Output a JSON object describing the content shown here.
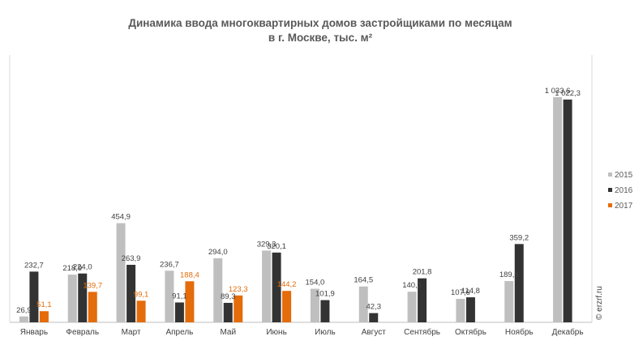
{
  "chart_data": {
    "type": "bar",
    "title_line1": "Динамика ввода многоквартирных домов застройщиками по месяцам",
    "title_line2": "в г. Москве, тыс. м²",
    "categories": [
      "Январь",
      "Февраль",
      "Март",
      "Апрель",
      "Май",
      "Июнь",
      "Июль",
      "Август",
      "Сентябрь",
      "Октябрь",
      "Ноябрь",
      "Декабрь"
    ],
    "ylim": [
      0,
      1100
    ],
    "grid": false,
    "legend_position": "right",
    "series": [
      {
        "name": "2015",
        "color": "#bfbfbf",
        "values": [
          26.9,
          218.9,
          454.9,
          236.7,
          294.0,
          329.3,
          154.0,
          164.5,
          140.3,
          107.6,
          189.3,
          1033.6
        ],
        "labels": [
          "26,9",
          "218,9",
          "454,9",
          "236,7",
          "294,0",
          "329,3",
          "154,0",
          "164,5",
          "140,3",
          "107,6",
          "189,3",
          "1 033,6"
        ]
      },
      {
        "name": "2016",
        "color": "#333333",
        "values": [
          232.7,
          224.0,
          263.9,
          91.1,
          89.3,
          320.1,
          101.9,
          42.3,
          201.8,
          114.8,
          359.2,
          1022.3
        ],
        "labels": [
          "232,7",
          "224,0",
          "263,9",
          "91,1",
          "89,3",
          "320,1",
          "101,9",
          "42,3",
          "201,8",
          "114,8",
          "359,2",
          "1 022,3"
        ]
      },
      {
        "name": "2017",
        "color": "#e46c0a",
        "values": [
          51.1,
          139.7,
          99.1,
          188.4,
          123.3,
          144.2,
          null,
          null,
          null,
          null,
          null,
          null
        ],
        "labels": [
          "51,1",
          "139,7",
          "99,1",
          "188,4",
          "123,3",
          "144,2",
          null,
          null,
          null,
          null,
          null,
          null
        ]
      }
    ]
  },
  "watermark": "© erzrf.ru"
}
